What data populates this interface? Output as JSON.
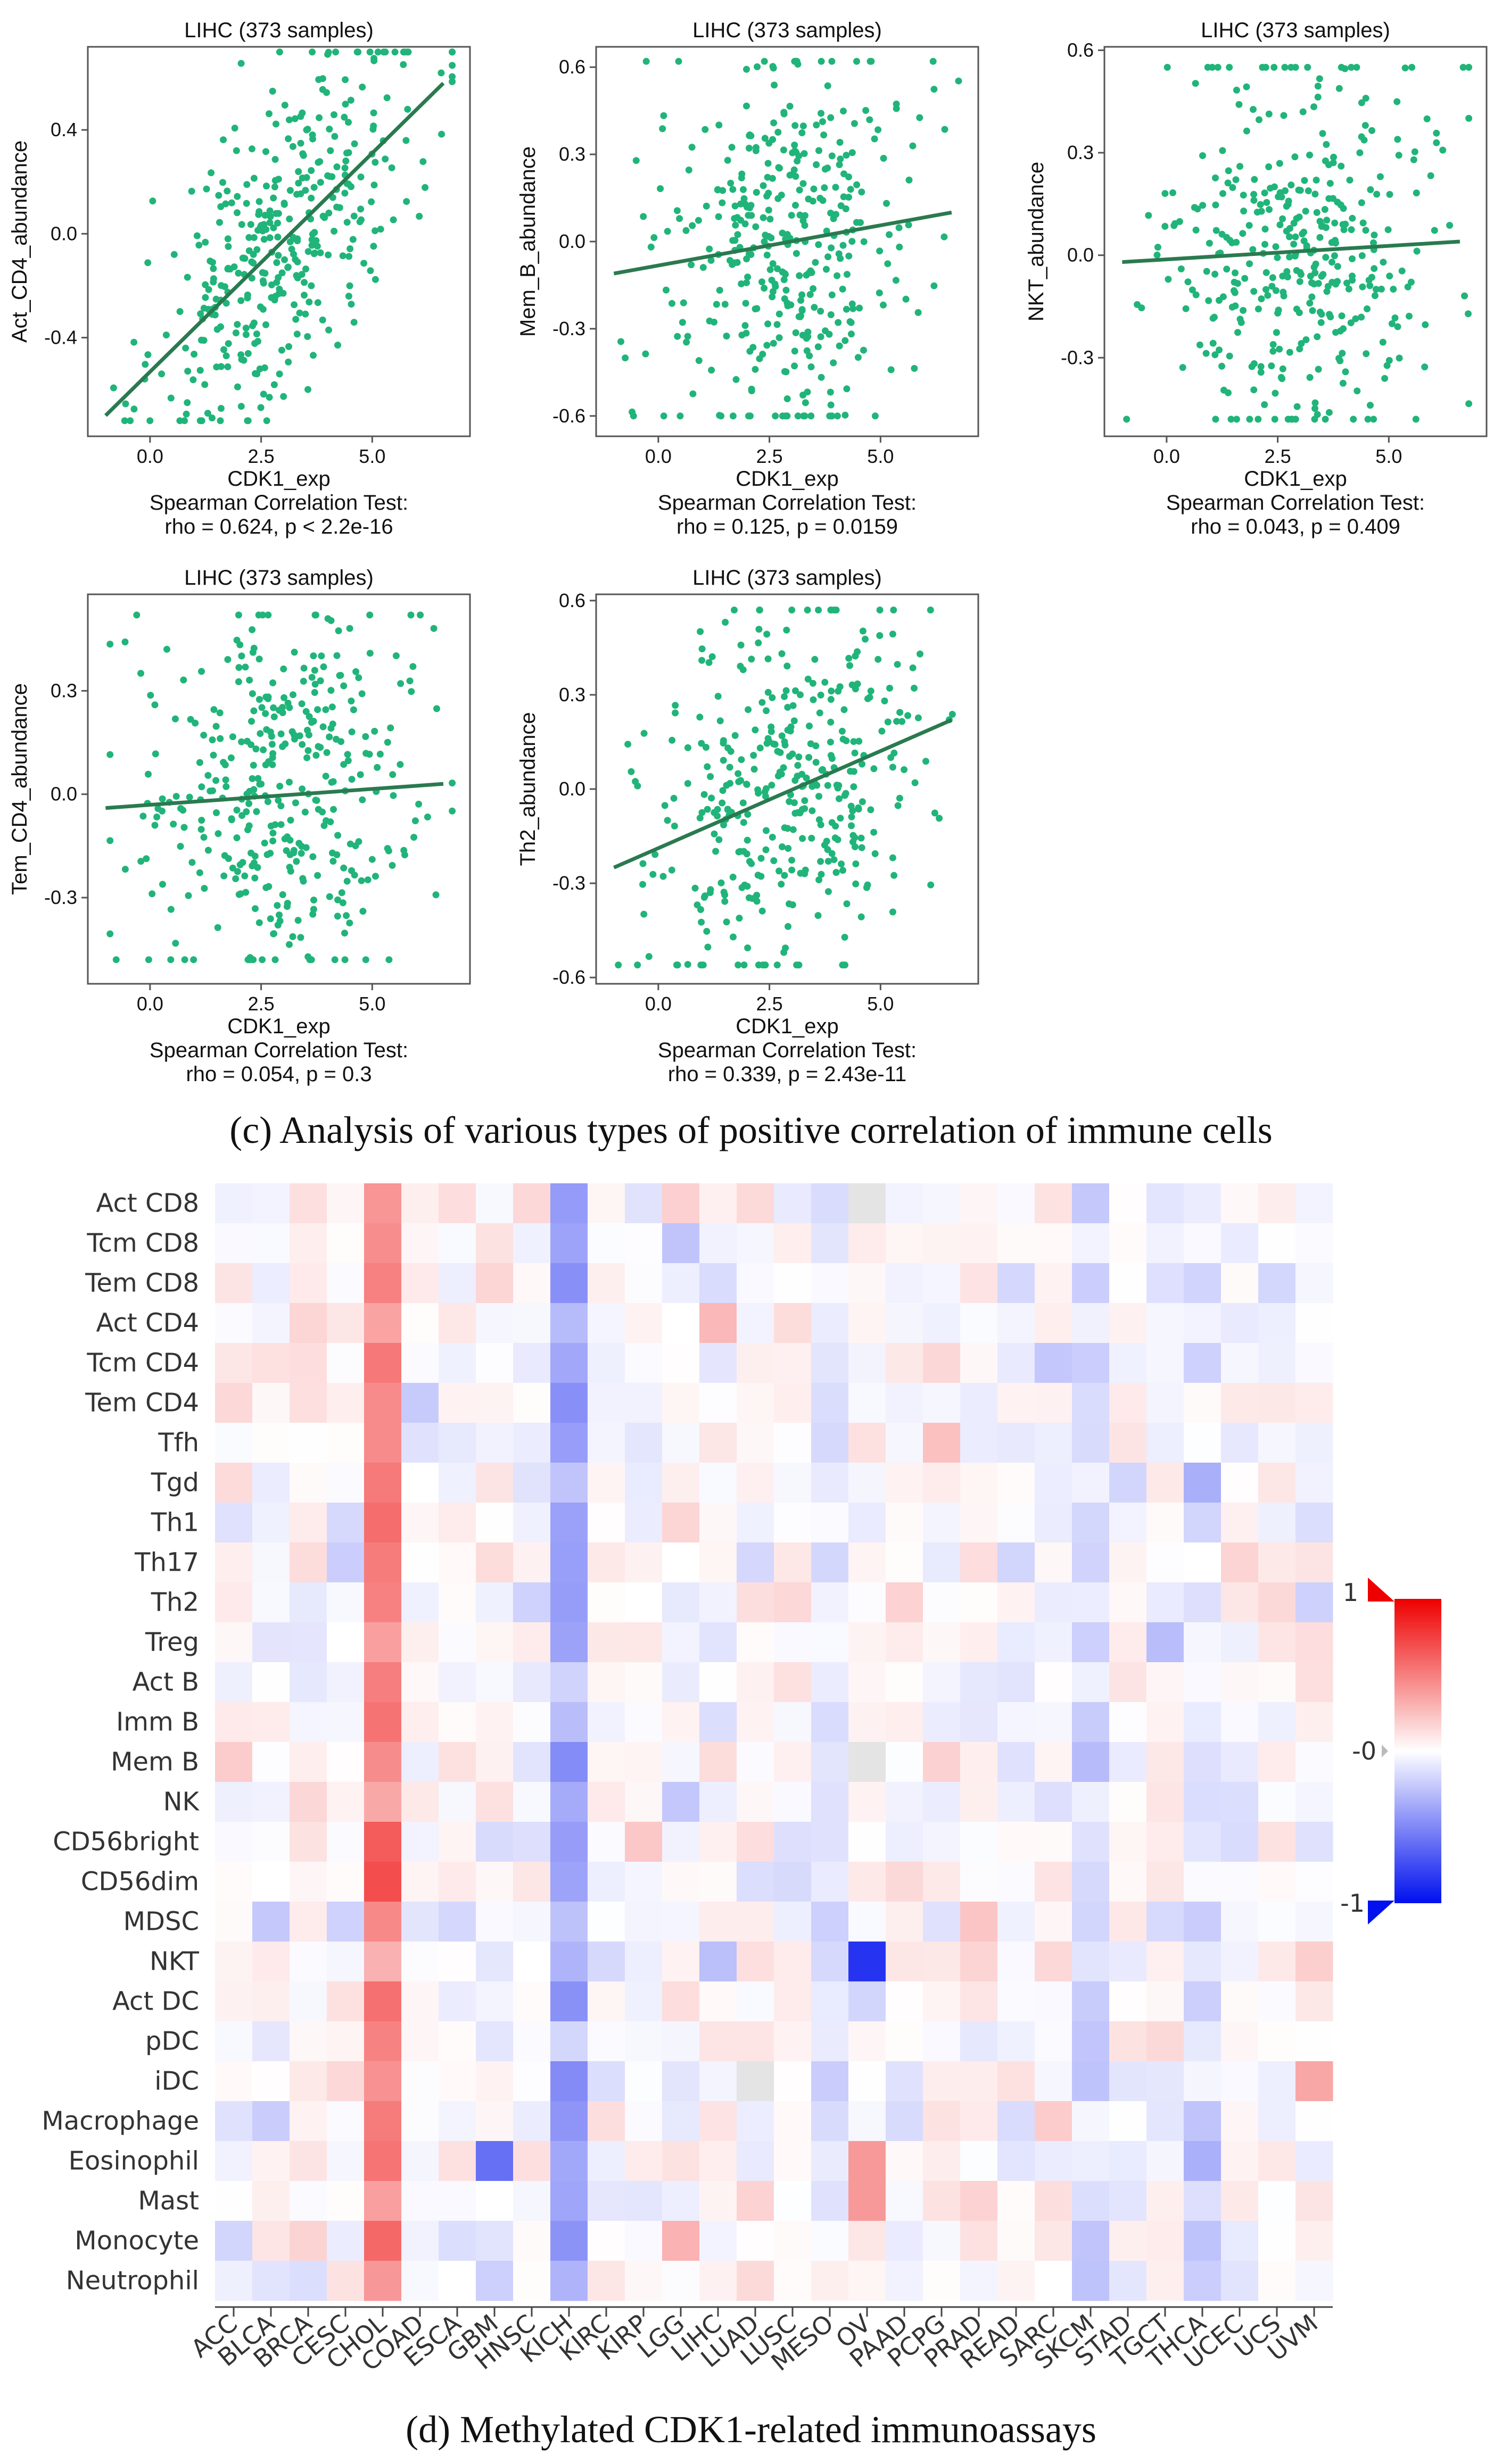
{
  "colors": {
    "point": "#21b47a",
    "line": "#2a7a4f",
    "frame": "#555555",
    "heat_pos": "#ee0000",
    "heat_neg": "#0010ee",
    "heat_mid": "#ffffff"
  },
  "caption_c": "(c) Analysis of various types of positive correlation of immune cells",
  "caption_d": "(d) Methylated CDK1-related immunoassays",
  "chart_data": [
    {
      "type": "scatter",
      "id": "act_cd4",
      "title": "LIHC (373 samples)",
      "xlabel": "CDK1_exp",
      "ylabel": "Act_CD4_abundance",
      "test_label": "Spearman Correlation Test:",
      "stat": "rho = 0.624, p < 2.2e-16",
      "xlim": [
        -1.4,
        7.2
      ],
      "ylim": [
        -0.78,
        0.72
      ],
      "xticks": [
        0.0,
        2.5,
        5.0
      ],
      "xtick_labels": [
        "0.0",
        "2.5",
        "5.0"
      ],
      "yticks": [
        -0.4,
        0.0,
        0.4
      ],
      "ytick_labels": [
        "-0.4",
        "0.0",
        "0.4"
      ],
      "fit": {
        "x": [
          -1.0,
          6.6
        ],
        "y": [
          -0.7,
          0.58
        ]
      },
      "n_points": 373,
      "rho": 0.624,
      "spread_y": [
        -0.72,
        0.7
      ]
    },
    {
      "type": "scatter",
      "id": "mem_b",
      "title": "LIHC (373 samples)",
      "xlabel": "CDK1_exp",
      "ylabel": "Mem_B_abundance",
      "test_label": "Spearman Correlation Test:",
      "stat": "rho = 0.125, p = 0.0159",
      "xlim": [
        -1.4,
        7.2
      ],
      "ylim": [
        -0.67,
        0.67
      ],
      "xticks": [
        0.0,
        2.5,
        5.0
      ],
      "xtick_labels": [
        "0.0",
        "2.5",
        "5.0"
      ],
      "yticks": [
        -0.6,
        -0.3,
        0.0,
        0.3,
        0.6
      ],
      "ytick_labels": [
        "-0.6",
        "-0.3",
        "0.0",
        "0.3",
        "0.6"
      ],
      "fit": {
        "x": [
          -1.0,
          6.6
        ],
        "y": [
          -0.11,
          0.1
        ]
      },
      "n_points": 373,
      "rho": 0.125,
      "spread_y": [
        -0.6,
        0.62
      ]
    },
    {
      "type": "scatter",
      "id": "nkt",
      "title": "LIHC (373 samples)",
      "xlabel": "CDK1_exp",
      "ylabel": "NKT_abundance",
      "test_label": "Spearman Correlation Test:",
      "stat": "rho = 0.043, p = 0.409",
      "xlim": [
        -1.4,
        7.2
      ],
      "ylim": [
        -0.53,
        0.61
      ],
      "xticks": [
        0.0,
        2.5,
        5.0
      ],
      "xtick_labels": [
        "0.0",
        "2.5",
        "5.0"
      ],
      "yticks": [
        -0.3,
        0.0,
        0.3,
        0.6
      ],
      "ytick_labels": [
        "-0.3",
        "0.0",
        "0.3",
        "0.6"
      ],
      "fit": {
        "x": [
          -1.0,
          6.6
        ],
        "y": [
          -0.02,
          0.04
        ]
      },
      "n_points": 373,
      "rho": 0.043,
      "spread_y": [
        -0.48,
        0.55
      ]
    },
    {
      "type": "scatter",
      "id": "tem_cd4",
      "title": "LIHC (373 samples)",
      "xlabel": "CDK1_exp",
      "ylabel": "Tem_CD4_abundance",
      "test_label": "Spearman Correlation Test:",
      "stat": "rho = 0.054, p = 0.3",
      "xlim": [
        -1.4,
        7.2
      ],
      "ylim": [
        -0.55,
        0.58
      ],
      "xticks": [
        0.0,
        2.5,
        5.0
      ],
      "xtick_labels": [
        "0.0",
        "2.5",
        "5.0"
      ],
      "yticks": [
        -0.3,
        0.0,
        0.3
      ],
      "ytick_labels": [
        "-0.3",
        "0.0",
        "0.3"
      ],
      "fit": {
        "x": [
          -1.0,
          6.6
        ],
        "y": [
          -0.04,
          0.03
        ]
      },
      "n_points": 373,
      "rho": 0.054,
      "spread_y": [
        -0.48,
        0.52
      ]
    },
    {
      "type": "scatter",
      "id": "th2",
      "title": "LIHC (373 samples)",
      "xlabel": "CDK1_exp",
      "ylabel": "Th2_abundance",
      "test_label": "Spearman Correlation Test:",
      "stat": "rho = 0.339, p = 2.43e-11",
      "xlim": [
        -1.4,
        7.2
      ],
      "ylim": [
        -0.62,
        0.62
      ],
      "xticks": [
        0.0,
        2.5,
        5.0
      ],
      "xtick_labels": [
        "0.0",
        "2.5",
        "5.0"
      ],
      "yticks": [
        -0.6,
        -0.3,
        0.0,
        0.3,
        0.6
      ],
      "ytick_labels": [
        "-0.6",
        "-0.3",
        "0.0",
        "0.3",
        "0.6"
      ],
      "fit": {
        "x": [
          -1.0,
          6.6
        ],
        "y": [
          -0.25,
          0.22
        ]
      },
      "n_points": 373,
      "rho": 0.339,
      "spread_y": [
        -0.56,
        0.57
      ]
    },
    {
      "type": "heatmap",
      "id": "methylation_heatmap",
      "rows": [
        "Act CD8",
        "Tcm CD8",
        "Tem CD8",
        "Act CD4",
        "Tcm CD4",
        "Tem CD4",
        "Tfh",
        "Tgd",
        "Th1",
        "Th17",
        "Th2",
        "Treg",
        "Act B",
        "Imm B",
        "Mem B",
        "NK",
        "CD56bright",
        "CD56dim",
        "MDSC",
        "NKT",
        "Act DC",
        "pDC",
        "iDC",
        "Macrophage",
        "Eosinophil",
        "Mast",
        "Monocyte",
        "Neutrophil"
      ],
      "columns": [
        "ACC",
        "BLCA",
        "BRCA",
        "CESC",
        "CHOL",
        "COAD",
        "ESCA",
        "GBM",
        "HNSC",
        "KICH",
        "KIRC",
        "KIRP",
        "LGG",
        "LIHC",
        "LUAD",
        "LUSC",
        "MESO",
        "OV",
        "PAAD",
        "PCPG",
        "PRAD",
        "READ",
        "SARC",
        "SKCM",
        "STAD",
        "TGCT",
        "THCA",
        "UCEC",
        "UCS",
        "UVM"
      ],
      "value_range": [
        -1,
        1
      ],
      "strong_columns": {
        "CHOL": 0.45,
        "KICH": -0.4,
        "MESO": -0.12,
        "SKCM": -0.15,
        "THCA": -0.12
      },
      "missing_cells": [
        [
          "Act CD8",
          "OV"
        ],
        [
          "Mem B",
          "OV"
        ],
        [
          "iDC",
          "LUAD"
        ]
      ],
      "legend": {
        "max_label": "1",
        "mid_label": "-0",
        "min_label": "-1"
      }
    }
  ]
}
